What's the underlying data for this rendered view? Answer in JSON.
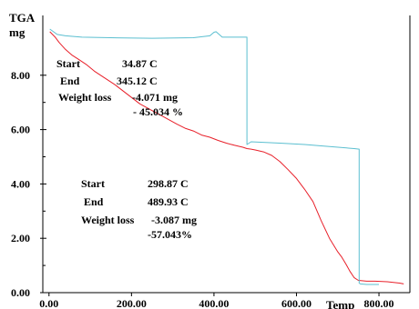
{
  "chart_data": {
    "type": "line",
    "title": "",
    "ylabel_line1": "TGA",
    "ylabel_line2": "mg",
    "xlabel": "Temp",
    "xlim": [
      -15,
      875
    ],
    "ylim": [
      0,
      10.2
    ],
    "grid": false,
    "x_ticks": [
      0,
      200,
      400,
      600,
      800
    ],
    "x_tick_labels": [
      "0.00",
      "200.00",
      "400.00",
      "600.00",
      "800.00"
    ],
    "y_ticks": [
      0,
      2,
      4,
      6,
      8
    ],
    "y_tick_labels": [
      "0.00",
      "2.00",
      "4.00",
      "6.00",
      "8.00"
    ],
    "y_minor_ticks": [
      1.0,
      3.0,
      5.0,
      7.0
    ],
    "series": [
      {
        "name": "",
        "color": "#e8202a",
        "x": [
          2,
          15,
          25,
          40,
          55,
          70,
          90,
          110,
          130,
          160,
          190,
          220,
          250,
          280,
          310,
          330,
          350,
          370,
          390,
          410,
          430,
          450,
          470,
          480,
          490,
          500,
          520,
          540,
          560,
          580,
          600,
          620,
          640,
          660,
          680,
          700,
          710,
          720,
          730,
          740,
          750,
          770,
          790,
          820,
          850,
          860
        ],
        "y": [
          9.6,
          9.4,
          9.2,
          8.95,
          8.75,
          8.6,
          8.4,
          8.15,
          7.95,
          7.65,
          7.3,
          6.95,
          6.7,
          6.45,
          6.2,
          6.05,
          5.95,
          5.8,
          5.72,
          5.6,
          5.5,
          5.42,
          5.35,
          5.3,
          5.28,
          5.25,
          5.18,
          5.05,
          4.82,
          4.52,
          4.2,
          3.8,
          3.35,
          2.65,
          2.0,
          1.5,
          1.3,
          1.05,
          0.78,
          0.55,
          0.45,
          0.42,
          0.42,
          0.4,
          0.35,
          0.32
        ]
      },
      {
        "name": "",
        "color": "#5bbfd0",
        "x": [
          2,
          20,
          40,
          80,
          150,
          250,
          350,
          390,
          400,
          405,
          420,
          480,
          480,
          490,
          560,
          620,
          660,
          740,
          752,
          752,
          755,
          770,
          790,
          800
        ],
        "y": [
          9.7,
          9.5,
          9.45,
          9.4,
          9.38,
          9.36,
          9.38,
          9.45,
          9.58,
          9.6,
          9.4,
          9.4,
          5.45,
          5.55,
          5.5,
          5.45,
          5.4,
          5.3,
          5.28,
          0.35,
          0.32,
          0.3,
          0.3,
          0.3
        ]
      }
    ],
    "annotations": [
      {
        "start_label": "Start",
        "start_value": "34.87 C",
        "end_label": "End",
        "end_value": "345.12 C",
        "loss_label": "Weight loss",
        "loss_mg": "-4.071 mg",
        "loss_pct": "- 45.034 %"
      },
      {
        "start_label": "Start",
        "start_value": "298.87 C",
        "end_label": "End",
        "end_value": "489.93 C",
        "loss_label": "Weight loss",
        "loss_mg": "-3.087 mg",
        "loss_pct": "-57.043%"
      }
    ]
  }
}
